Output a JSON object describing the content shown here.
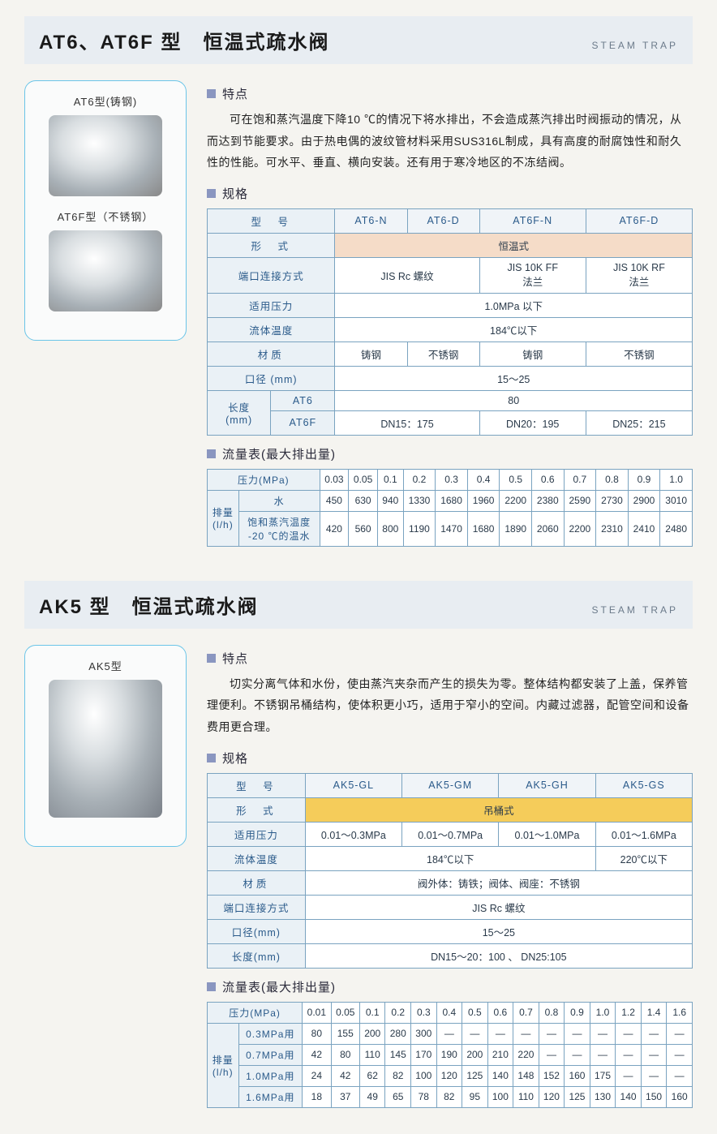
{
  "product1": {
    "title_main": "AT6、AT6F 型　恒温式疏水阀",
    "title_sub": "STEAM TRAP",
    "images": [
      {
        "label": "AT6型(铸钢)"
      },
      {
        "label": "AT6F型（不锈钢）"
      }
    ],
    "features_heading": "特点",
    "features_text": "可在饱和蒸汽温度下降10 ℃的情况下将水排出，不会造成蒸汽排出时阀振动的情况，从而达到节能要求。由于热电偶的波纹管材料采用SUS316L制成，具有高度的耐腐蚀性和耐久性的性能。可水平、垂直、横向安装。还有用于寒冷地区的不冻结阀。",
    "spec_heading": "规格",
    "spec_rows": {
      "model_label": "型　号",
      "models": [
        "AT6-N",
        "AT6-D",
        "AT6F-N",
        "AT6F-D"
      ],
      "type_label": "形　式",
      "type_value": "恒温式",
      "conn_label": "端口连接方式",
      "conn_12": "JIS Rc 螺纹",
      "conn_3": "JIS 10K FF\n法兰",
      "conn_4": "JIS 10K RF\n法兰",
      "pressure_label": "适用压力",
      "pressure_value": "1.0MPa 以下",
      "temp_label": "流体温度",
      "temp_value": "184℃以下",
      "material_label": "材质",
      "materials": [
        "铸钢",
        "不锈钢",
        "铸钢",
        "不锈钢"
      ],
      "dia_label": "口径 (mm)",
      "dia_value": "15～25",
      "len_label": "长度\n(mm)",
      "len_at6_label": "AT6",
      "len_at6_value": "80",
      "len_at6f_label": "AT6F",
      "len_at6f_values": [
        "DN15：175",
        "DN20：195",
        "DN25：215"
      ]
    },
    "flow_heading": "流量表(最大排出量)",
    "flow": {
      "pressure_label": "压力(MPa)",
      "pressures": [
        "0.03",
        "0.05",
        "0.1",
        "0.2",
        "0.3",
        "0.4",
        "0.5",
        "0.6",
        "0.7",
        "0.8",
        "0.9",
        "1.0"
      ],
      "row_group_label": "排量\n(l/h)",
      "rows": [
        {
          "label": "水",
          "values": [
            "450",
            "630",
            "940",
            "1330",
            "1680",
            "1960",
            "2200",
            "2380",
            "2590",
            "2730",
            "2900",
            "3010"
          ]
        },
        {
          "label": "饱和蒸汽温度\n-20 ℃的温水",
          "values": [
            "420",
            "560",
            "800",
            "1190",
            "1470",
            "1680",
            "1890",
            "2060",
            "2200",
            "2310",
            "2410",
            "2480"
          ]
        }
      ]
    }
  },
  "product2": {
    "title_main": "AK5 型　恒温式疏水阀",
    "title_sub": "STEAM TRAP",
    "images": [
      {
        "label": "AK5型"
      }
    ],
    "features_heading": "特点",
    "features_text": "切实分离气体和水份，使由蒸汽夹杂而产生的损失为零。整体结构都安装了上盖，保养管理便利。不锈钢吊桶结构，使体积更小巧，适用于窄小的空间。内藏过滤器，配管空间和设备费用更合理。",
    "spec_heading": "规格",
    "spec_rows": {
      "model_label": "型　号",
      "models": [
        "AK5-GL",
        "AK5-GM",
        "AK5-GH",
        "AK5-GS"
      ],
      "type_label": "形　式",
      "type_value": "吊桶式",
      "pressure_label": "适用压力",
      "pressures": [
        "0.01～0.3MPa",
        "0.01～0.7MPa",
        "0.01～1.0MPa",
        "0.01～1.6MPa"
      ],
      "temp_label": "流体温度",
      "temp_123": "184℃以下",
      "temp_4": "220℃以下",
      "material_label": "材质",
      "material_value": "阀外体：铸铁；阀体、阀座：不锈钢",
      "conn_label": "端口连接方式",
      "conn_value": "JIS Rc 螺纹",
      "dia_label": "口径(mm)",
      "dia_value": "15～25",
      "len_label": "长度(mm)",
      "len_value": "DN15～20：100 、 DN25:105"
    },
    "flow_heading": "流量表(最大排出量)",
    "flow": {
      "pressure_label": "压力(MPa)",
      "pressures": [
        "0.01",
        "0.05",
        "0.1",
        "0.2",
        "0.3",
        "0.4",
        "0.5",
        "0.6",
        "0.7",
        "0.8",
        "0.9",
        "1.0",
        "1.2",
        "1.4",
        "1.6"
      ],
      "row_group_label": "排量\n(l/h)",
      "rows": [
        {
          "label": "0.3MPa用",
          "values": [
            "80",
            "155",
            "200",
            "280",
            "300",
            "—",
            "—",
            "—",
            "—",
            "—",
            "—",
            "—",
            "—",
            "—",
            "—"
          ]
        },
        {
          "label": "0.7MPa用",
          "values": [
            "42",
            "80",
            "110",
            "145",
            "170",
            "190",
            "200",
            "210",
            "220",
            "—",
            "—",
            "—",
            "—",
            "—",
            "—"
          ]
        },
        {
          "label": "1.0MPa用",
          "values": [
            "24",
            "42",
            "62",
            "82",
            "100",
            "120",
            "125",
            "140",
            "148",
            "152",
            "160",
            "175",
            "—",
            "—",
            "—"
          ]
        },
        {
          "label": "1.6MPa用",
          "values": [
            "18",
            "37",
            "49",
            "65",
            "78",
            "82",
            "95",
            "100",
            "110",
            "120",
            "125",
            "130",
            "140",
            "150",
            "160"
          ]
        }
      ]
    }
  }
}
